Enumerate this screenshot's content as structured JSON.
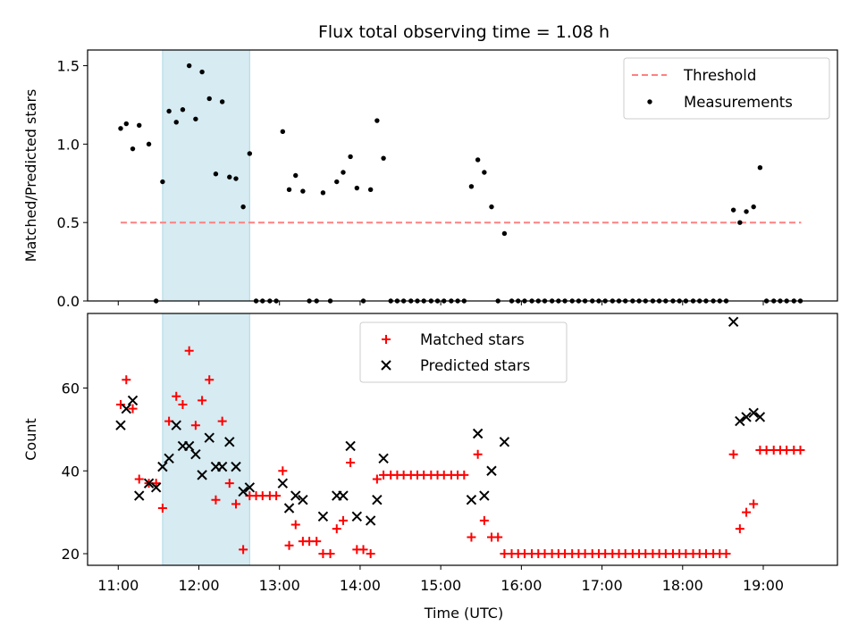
{
  "title": "Flux total observing time = 1.08 h",
  "colors": {
    "threshold": "#ff8080",
    "measurement": "#000000",
    "matched": "#ff0000",
    "predicted": "#000000",
    "highlight": "#add8e6"
  },
  "chart_data": [
    {
      "type": "scatter",
      "ylabel": "Matched/Predicted stars",
      "ylim": [
        0,
        1.6
      ],
      "yticks": [
        0.0,
        0.5,
        1.0,
        1.5
      ],
      "ytick_labels": [
        "0.0",
        "0.5",
        "1.0",
        "1.5"
      ],
      "xlim": [
        10.62,
        19.92
      ],
      "highlight_span": [
        11.55,
        12.63
      ],
      "legend": {
        "position": "top-right",
        "threshold": "Threshold",
        "measurements": "Measurements"
      },
      "threshold": {
        "name": "Threshold",
        "value": 0.5,
        "x_range": [
          11.03,
          19.47
        ]
      },
      "series": [
        {
          "name": "Measurements",
          "x": [
            11.03,
            11.1,
            11.18,
            11.26,
            11.38,
            11.47,
            11.55,
            11.63,
            11.72,
            11.8,
            11.88,
            11.96,
            12.04,
            12.13,
            12.21,
            12.29,
            12.38,
            12.46,
            12.55,
            12.63,
            12.71,
            12.79,
            12.88,
            12.96,
            13.04,
            13.12,
            13.2,
            13.29,
            13.37,
            13.46,
            13.54,
            13.63,
            13.71,
            13.79,
            13.88,
            13.96,
            14.04,
            14.13,
            14.21,
            14.29,
            14.38,
            14.46,
            14.54,
            14.63,
            14.71,
            14.79,
            14.88,
            14.96,
            15.04,
            15.13,
            15.21,
            15.29,
            15.38,
            15.46,
            15.54,
            15.63,
            15.71,
            15.79,
            15.88,
            15.96,
            16.04,
            16.13,
            16.21,
            16.29,
            16.38,
            16.46,
            16.54,
            16.63,
            16.71,
            16.79,
            16.88,
            16.96,
            17.04,
            17.13,
            17.21,
            17.29,
            17.38,
            17.46,
            17.54,
            17.63,
            17.71,
            17.79,
            17.88,
            17.96,
            18.04,
            18.13,
            18.21,
            18.29,
            18.38,
            18.46,
            18.54,
            18.63,
            18.71,
            18.79,
            18.88,
            18.96,
            19.04,
            19.13,
            19.21,
            19.29,
            19.38,
            19.46
          ],
          "y": [
            1.1,
            1.13,
            0.97,
            1.12,
            1.0,
            0.0,
            0.76,
            1.21,
            1.14,
            1.22,
            1.5,
            1.16,
            1.46,
            1.29,
            0.81,
            1.27,
            0.79,
            0.78,
            0.6,
            0.94,
            0.0,
            0.0,
            0.0,
            0.0,
            1.08,
            0.71,
            0.8,
            0.7,
            0.0,
            0.0,
            0.69,
            0.0,
            0.76,
            0.82,
            0.92,
            0.72,
            0.0,
            0.71,
            1.15,
            0.91,
            0.0,
            0.0,
            0.0,
            0.0,
            0.0,
            0.0,
            0.0,
            0.0,
            0.0,
            0.0,
            0.0,
            0.0,
            0.73,
            0.9,
            0.82,
            0.6,
            0.0,
            0.43,
            0.0,
            0.0,
            0.0,
            0.0,
            0.0,
            0.0,
            0.0,
            0.0,
            0.0,
            0.0,
            0.0,
            0.0,
            0.0,
            0.0,
            0.0,
            0.0,
            0.0,
            0.0,
            0.0,
            0.0,
            0.0,
            0.0,
            0.0,
            0.0,
            0.0,
            0.0,
            0.0,
            0.0,
            0.0,
            0.0,
            0.0,
            0.0,
            0.0,
            0.58,
            0.5,
            0.57,
            0.6,
            0.85,
            0.0,
            0.0,
            0.0,
            0.0,
            0.0,
            0.0
          ]
        }
      ]
    },
    {
      "type": "scatter",
      "ylabel": "Count",
      "xlabel": "Time (UTC)",
      "ylim": [
        17.2,
        78
      ],
      "yticks": [
        20,
        40,
        60
      ],
      "ytick_labels": [
        "20",
        "40",
        "60"
      ],
      "xlim": [
        10.62,
        19.92
      ],
      "xticks": [
        11,
        12,
        13,
        14,
        15,
        16,
        17,
        18,
        19
      ],
      "xtick_labels": [
        "11:00",
        "12:00",
        "13:00",
        "14:00",
        "15:00",
        "16:00",
        "17:00",
        "18:00",
        "19:00"
      ],
      "highlight_span": [
        11.55,
        12.63
      ],
      "legend": {
        "position": "top-center",
        "matched": "Matched stars",
        "predicted": "Predicted stars"
      },
      "series": [
        {
          "name": "Matched stars",
          "x": [
            11.03,
            11.1,
            11.18,
            11.26,
            11.38,
            11.47,
            11.55,
            11.63,
            11.72,
            11.8,
            11.88,
            11.96,
            12.04,
            12.13,
            12.21,
            12.29,
            12.38,
            12.46,
            12.55,
            12.63,
            12.71,
            12.79,
            12.88,
            12.96,
            13.04,
            13.12,
            13.2,
            13.29,
            13.37,
            13.46,
            13.54,
            13.63,
            13.71,
            13.79,
            13.88,
            13.96,
            14.04,
            14.13,
            14.21,
            14.29,
            14.38,
            14.46,
            14.54,
            14.63,
            14.71,
            14.79,
            14.88,
            14.96,
            15.04,
            15.13,
            15.21,
            15.29,
            15.38,
            15.46,
            15.54,
            15.63,
            15.71,
            15.79,
            15.88,
            15.96,
            16.04,
            16.13,
            16.21,
            16.29,
            16.38,
            16.46,
            16.54,
            16.63,
            16.71,
            16.79,
            16.88,
            16.96,
            17.04,
            17.13,
            17.21,
            17.29,
            17.38,
            17.46,
            17.54,
            17.63,
            17.71,
            17.79,
            17.88,
            17.96,
            18.04,
            18.13,
            18.21,
            18.29,
            18.38,
            18.46,
            18.54,
            18.63,
            18.71,
            18.79,
            18.88,
            18.96,
            19.04,
            19.13,
            19.21,
            19.29,
            19.38,
            19.46
          ],
          "y": [
            56,
            62,
            55,
            38,
            37,
            37,
            31,
            52,
            58,
            56,
            69,
            51,
            57,
            62,
            33,
            52,
            37,
            32,
            21,
            34,
            34,
            34,
            34,
            34,
            40,
            22,
            27,
            23,
            23,
            23,
            20,
            20,
            26,
            28,
            42,
            21,
            21,
            20,
            38,
            39,
            39,
            39,
            39,
            39,
            39,
            39,
            39,
            39,
            39,
            39,
            39,
            39,
            24,
            44,
            28,
            24,
            24,
            20,
            20,
            20,
            20,
            20,
            20,
            20,
            20,
            20,
            20,
            20,
            20,
            20,
            20,
            20,
            20,
            20,
            20,
            20,
            20,
            20,
            20,
            20,
            20,
            20,
            20,
            20,
            20,
            20,
            20,
            20,
            20,
            20,
            20,
            44,
            26,
            30,
            32,
            45,
            45,
            45,
            45,
            45,
            45,
            45
          ]
        },
        {
          "name": "Predicted stars",
          "x": [
            11.03,
            11.1,
            11.18,
            11.26,
            11.38,
            11.47,
            11.55,
            11.63,
            11.72,
            11.8,
            11.88,
            11.96,
            12.04,
            12.13,
            12.21,
            12.29,
            12.38,
            12.46,
            12.55,
            12.63,
            13.04,
            13.12,
            13.2,
            13.29,
            13.54,
            13.71,
            13.79,
            13.88,
            13.96,
            14.13,
            14.21,
            14.29,
            15.38,
            15.46,
            15.54,
            15.63,
            15.79,
            18.63,
            18.71,
            18.79,
            18.88,
            18.96
          ],
          "y": [
            51,
            55,
            57,
            34,
            37,
            36,
            41,
            43,
            51,
            46,
            46,
            44,
            39,
            48,
            41,
            41,
            47,
            41,
            35,
            36,
            37,
            31,
            34,
            33,
            29,
            34,
            34,
            46,
            29,
            28,
            33,
            43,
            33,
            49,
            34,
            40,
            47,
            76,
            52,
            53,
            54,
            53
          ]
        }
      ]
    }
  ]
}
